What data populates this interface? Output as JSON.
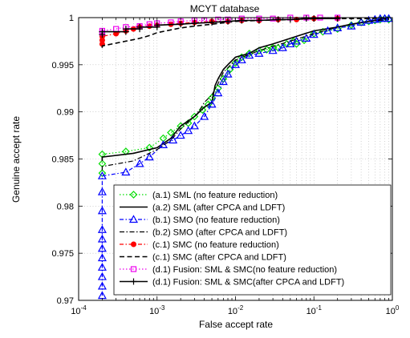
{
  "chart_data": {
    "type": "line",
    "title": "MCYT database",
    "xlabel": "False accept rate",
    "ylabel": "Genuine accept rate",
    "xscale": "log",
    "xlim": [
      0.0001,
      1
    ],
    "ylim": [
      0.97,
      1
    ],
    "x_ticks": [
      {
        "value": 0.0001,
        "base": "10",
        "exp": "-4"
      },
      {
        "value": 0.001,
        "base": "10",
        "exp": "-3"
      },
      {
        "value": 0.01,
        "base": "10",
        "exp": "-2"
      },
      {
        "value": 0.1,
        "base": "10",
        "exp": "-1"
      },
      {
        "value": 1,
        "base": "10",
        "exp": "0"
      }
    ],
    "y_ticks": [
      {
        "value": 0.97,
        "label": "0.97"
      },
      {
        "value": 0.975,
        "label": "0.975"
      },
      {
        "value": 0.98,
        "label": "0.98"
      },
      {
        "value": 0.985,
        "label": "0.985"
      },
      {
        "value": 0.99,
        "label": "0.99"
      },
      {
        "value": 0.995,
        "label": "0.995"
      },
      {
        "value": 1,
        "label": "1"
      }
    ],
    "grid": true,
    "legend_position": "bottom-right",
    "series": [
      {
        "name": "(a.1) SML (no feature reduction)",
        "color": "#00dd00",
        "dash": "1.5,2.5",
        "width": 1.2,
        "marker": "diamond",
        "x": [
          0.0002,
          0.0002,
          0.0002,
          0.0004,
          0.0008,
          0.0012,
          0.0015,
          0.002,
          0.0025,
          0.003,
          0.0038,
          0.0045,
          0.005,
          0.006,
          0.007,
          0.0085,
          0.01,
          0.012,
          0.015,
          0.02,
          0.025,
          0.03,
          0.035,
          0.045,
          0.055,
          0.06,
          0.075,
          0.1,
          0.13,
          0.2,
          0.3,
          0.4,
          0.5,
          0.6,
          0.7,
          0.8,
          0.9
        ],
        "y": [
          0.9835,
          0.9845,
          0.9855,
          0.9858,
          0.9862,
          0.9872,
          0.9878,
          0.9885,
          0.9888,
          0.9895,
          0.9902,
          0.9908,
          0.9915,
          0.9925,
          0.9935,
          0.9945,
          0.9952,
          0.9958,
          0.9962,
          0.9965,
          0.9966,
          0.9968,
          0.9968,
          0.9972,
          0.9975,
          0.9972,
          0.9976,
          0.9983,
          0.9985,
          0.9988,
          0.9992,
          0.9995,
          0.9996,
          0.9997,
          0.9998,
          0.9999,
          0.9998
        ]
      },
      {
        "name": "(a.2) SML (after CPCA and LDFT)",
        "color": "#000000",
        "dash": "",
        "width": 1.6,
        "marker": "none",
        "x": [
          0.0002,
          0.0002,
          0.0005,
          0.001,
          0.0015,
          0.002,
          0.003,
          0.004,
          0.005,
          0.0055,
          0.006,
          0.007,
          0.008,
          0.01,
          0.015,
          0.02,
          0.03,
          0.05,
          0.07,
          0.1,
          0.2,
          0.3,
          0.5,
          0.7,
          0.8,
          0.9
        ],
        "y": [
          0.9848,
          0.9852,
          0.9856,
          0.9862,
          0.9872,
          0.9885,
          0.9895,
          0.9905,
          0.991,
          0.9928,
          0.9935,
          0.9945,
          0.995,
          0.9958,
          0.9962,
          0.9968,
          0.9972,
          0.9978,
          0.9982,
          0.9986,
          0.999,
          0.9993,
          0.9996,
          0.9998,
          0.9999,
          0.9999
        ]
      },
      {
        "name": "(b.1) SMO (no feature reduction)",
        "color": "#0000ff",
        "dash": "5,2.5,1.5,2.5",
        "width": 1.2,
        "marker": "triangle",
        "x": [
          0.0002,
          0.0002,
          0.0002,
          0.0002,
          0.0002,
          0.0002,
          0.0002,
          0.0002,
          0.0002,
          0.0002,
          0.0002,
          0.0004,
          0.0006,
          0.0008,
          0.0012,
          0.0016,
          0.002,
          0.0025,
          0.003,
          0.004,
          0.005,
          0.006,
          0.007,
          0.008,
          0.01,
          0.012,
          0.015,
          0.02,
          0.03,
          0.04,
          0.05,
          0.06,
          0.08,
          0.1,
          0.15,
          0.2,
          0.3,
          0.4,
          0.5,
          0.6,
          0.7,
          0.8,
          0.9
        ],
        "y": [
          0.9705,
          0.9715,
          0.9725,
          0.9735,
          0.9745,
          0.9755,
          0.9765,
          0.9775,
          0.9795,
          0.9815,
          0.9832,
          0.9836,
          0.9845,
          0.9852,
          0.9865,
          0.987,
          0.9875,
          0.988,
          0.9885,
          0.9895,
          0.9908,
          0.992,
          0.9932,
          0.994,
          0.995,
          0.9955,
          0.996,
          0.9962,
          0.9965,
          0.9968,
          0.9972,
          0.9975,
          0.9978,
          0.9982,
          0.9986,
          0.9989,
          0.9991,
          0.9995,
          0.9997,
          0.9998,
          0.9999,
          0.9999,
          0.9999
        ]
      },
      {
        "name": "(b.2) SMO (after CPCA and LDFT)",
        "color": "#000000",
        "dash": "6,2.5,1.5,2.5",
        "width": 1.2,
        "marker": "none",
        "x": [
          0.0002,
          0.0002,
          0.0005,
          0.001,
          0.0015,
          0.002,
          0.003,
          0.0035,
          0.004,
          0.005,
          0.006,
          0.007,
          0.01,
          0.02,
          0.05,
          0.1,
          0.2,
          0.5,
          0.9
        ],
        "y": [
          0.9838,
          0.9842,
          0.9848,
          0.986,
          0.987,
          0.9882,
          0.9895,
          0.9902,
          0.991,
          0.9918,
          0.993,
          0.9942,
          0.9955,
          0.9965,
          0.9975,
          0.9983,
          0.999,
          0.9996,
          0.9998
        ]
      },
      {
        "name": "(c.1) SMC (no feature reduction)",
        "color": "#ff0000",
        "dash": "5,2.5,1.5,2.5",
        "width": 1.2,
        "marker": "circle",
        "x": [
          0.0002,
          0.0002,
          0.0002,
          0.0003,
          0.0004,
          0.0005,
          0.0006,
          0.0008,
          0.001,
          0.0015,
          0.002,
          0.003,
          0.005,
          0.008,
          0.012,
          0.02,
          0.035,
          0.06,
          0.1,
          0.2
        ],
        "y": [
          0.9972,
          0.9976,
          0.998,
          0.9983,
          0.9986,
          0.9988,
          0.999,
          0.9991,
          0.9992,
          0.9993,
          0.9994,
          0.9995,
          0.9996,
          0.9996,
          0.9997,
          0.9997,
          0.9998,
          0.9998,
          0.9999,
          0.9999
        ]
      },
      {
        "name": "(c.1) SMC (after CPCA and LDFT)",
        "color": "#000000",
        "dash": "6,3.5",
        "width": 1.6,
        "marker": "none",
        "x": [
          0.0002,
          0.0002,
          0.0004,
          0.0006,
          0.0008,
          0.001,
          0.0015,
          0.002,
          0.003,
          0.005,
          0.008,
          0.01,
          0.02,
          0.05,
          0.1,
          0.2,
          0.5,
          0.9
        ],
        "y": [
          0.9968,
          0.997,
          0.9975,
          0.9978,
          0.9981,
          0.9984,
          0.9987,
          0.9989,
          0.9991,
          0.9993,
          0.9995,
          0.9996,
          0.9997,
          0.9998,
          0.9999,
          0.9999,
          0.9999,
          1.0
        ]
      },
      {
        "name": "(d.1) Fusion: SML & SMC(no feature reduction)",
        "color": "#ee00ee",
        "dash": "1.5,2.5",
        "width": 1.2,
        "marker": "square",
        "x": [
          0.0002,
          0.0002,
          0.0003,
          0.0004,
          0.0006,
          0.0008,
          0.001,
          0.0015,
          0.002,
          0.003,
          0.004,
          0.006,
          0.008,
          0.012,
          0.02,
          0.03,
          0.05,
          0.08,
          0.12,
          0.2
        ],
        "y": [
          0.9984,
          0.9986,
          0.9988,
          0.999,
          0.9991,
          0.9993,
          0.9994,
          0.9995,
          0.9996,
          0.9997,
          0.9997,
          0.9998,
          0.9998,
          0.9999,
          0.9999,
          0.9999,
          1.0,
          1.0,
          1.0,
          1.0
        ]
      },
      {
        "name": "(d.1) Fusion: SML & SMC(after CPCA and LDFT)",
        "color": "#000000",
        "dash": "",
        "width": 1.6,
        "marker": "plus",
        "x": [
          0.0002,
          0.0002,
          0.0004,
          0.0004,
          0.0006,
          0.0006,
          0.001,
          0.001,
          0.002,
          0.003,
          0.005,
          0.008,
          0.012,
          0.02,
          0.035,
          0.05,
          0.08,
          0.1,
          0.2
        ],
        "y": [
          0.9982,
          0.9985,
          0.9985,
          0.9988,
          0.9988,
          0.999,
          0.999,
          0.9992,
          0.9993,
          0.9994,
          0.9995,
          0.9996,
          0.9997,
          0.9997,
          0.9998,
          0.9998,
          0.9999,
          0.9999,
          0.9999
        ]
      }
    ]
  }
}
